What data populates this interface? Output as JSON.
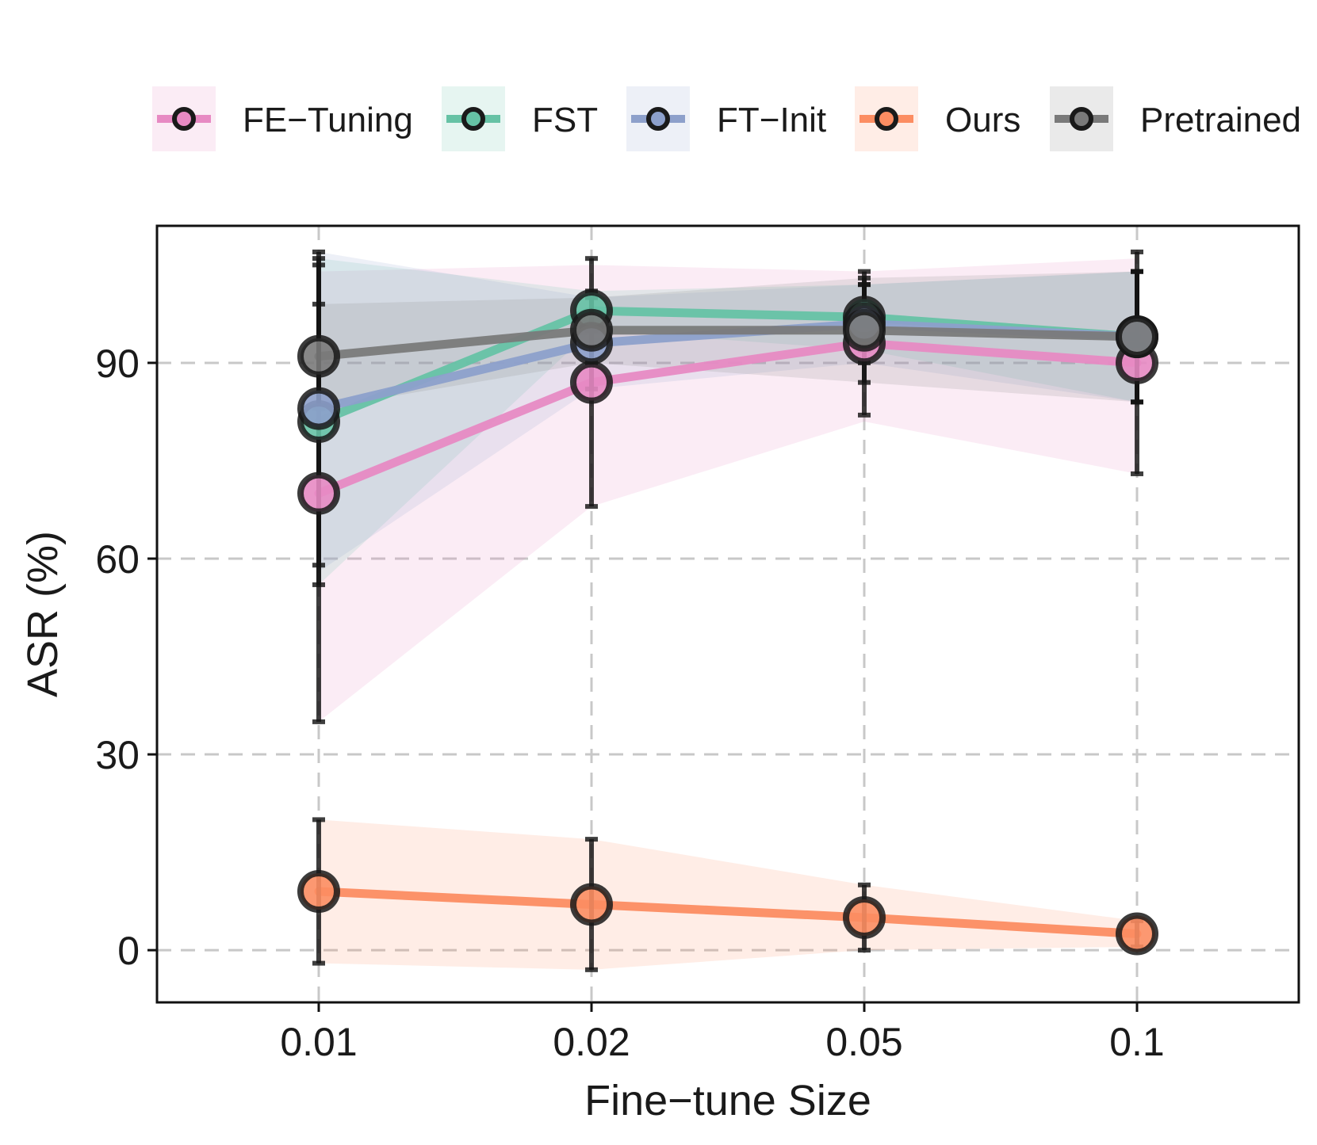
{
  "chart_data": {
    "type": "line",
    "xlabel": "Fine−tune Size",
    "ylabel": "ASR (%)",
    "categories": [
      "0.01",
      "0.02",
      "0.05",
      "0.1"
    ],
    "yticks": [
      "0",
      "30",
      "60",
      "90"
    ],
    "ylim": [
      -8,
      111
    ],
    "grid": true,
    "legend_position": "top",
    "series": [
      {
        "name": "FE−Tuning",
        "color": "#e78ac3",
        "values": [
          70,
          87,
          93,
          90
        ],
        "err": [
          35,
          19,
          11,
          17
        ],
        "band": [
          [
            35,
            104
          ],
          [
            68,
            105
          ],
          [
            81,
            104
          ],
          [
            73,
            106
          ]
        ]
      },
      {
        "name": "FST",
        "color": "#66c2a5",
        "values": [
          81,
          98,
          97,
          94
        ],
        "err": [
          25,
          3,
          5,
          10
        ],
        "band": [
          [
            56,
            106
          ],
          [
            95,
            101
          ],
          [
            92,
            102
          ],
          [
            84,
            104
          ]
        ]
      },
      {
        "name": "FT−Init",
        "color": "#8da0cb",
        "values": [
          83,
          93,
          96,
          94
        ],
        "err": [
          24,
          7,
          6,
          10
        ],
        "band": [
          [
            58,
            107
          ],
          [
            86,
            100
          ],
          [
            90,
            102
          ],
          [
            84,
            104
          ]
        ]
      },
      {
        "name": "Ours",
        "color": "#fc8d62",
        "values": [
          9,
          7,
          5,
          2.5
        ],
        "err": [
          11,
          10,
          5,
          2
        ],
        "band": [
          [
            -2,
            20
          ],
          [
            -3,
            17
          ],
          [
            0,
            10
          ],
          [
            0.5,
            4.5
          ]
        ]
      },
      {
        "name": "Pretrained",
        "color": "#7a7a7a",
        "values": [
          91,
          95,
          95,
          94
        ],
        "err": [
          8,
          5,
          8,
          10
        ],
        "band": [
          [
            83,
            99
          ],
          [
            90,
            100
          ],
          [
            87,
            103
          ],
          [
            84,
            104
          ]
        ]
      }
    ]
  }
}
